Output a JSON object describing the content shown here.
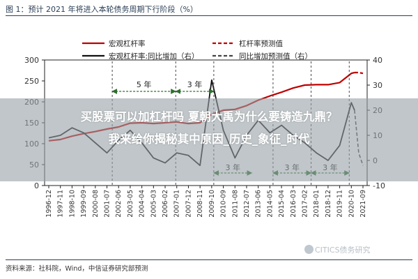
{
  "figure": {
    "title": "图 1：预计 2021 年将进入本轮债务周期下行阶段（%）",
    "source": "资料来源：社科院，Wind，中信证券研究部预测",
    "watermark": "CITICS债务研究"
  },
  "overlay": {
    "line1": "买股票可以加杠杆吗 夏朝大禹为什么要铸造九鼎？",
    "line2": "我来给你揭秘其中原因_历史_象征_时代"
  },
  "colors": {
    "leverage": "#c00000",
    "yoy": "#111111",
    "forecast_dash": "#c00000",
    "yoy_forecast_dash": "#444444",
    "cycle_arrow": "#2f6f2f",
    "title_text": "#2a3f56",
    "overlay_bg": "#98a2a6"
  },
  "chart_data": {
    "type": "line",
    "title": "",
    "xlabel": "",
    "ylabel": "",
    "x_ticks": [
      "1996-12",
      "1997-11",
      "1998-10",
      "1999-09",
      "2000-08",
      "2001-07",
      "2002-06",
      "2003-05",
      "2004-04",
      "2005-03",
      "2006-02",
      "2007-01",
      "2007-12",
      "2008-11",
      "2009-10",
      "2010-09",
      "2011-08",
      "2012-07",
      "2013-06",
      "2014-05",
      "2015-04",
      "2016-03",
      "2017-02",
      "2018-01",
      "2018-12",
      "2019-11",
      "2020-10",
      "2021-09"
    ],
    "left_axis": {
      "ticks": [
        0,
        50,
        100,
        150,
        200,
        250,
        300
      ],
      "ylim": [
        0,
        300
      ]
    },
    "right_axis": {
      "ticks": [
        -10,
        0,
        10,
        20,
        30,
        40
      ],
      "ylim": [
        -10,
        40
      ]
    },
    "legend": [
      {
        "label": "宏观杠杆率",
        "style": "solid",
        "color": "#c00000"
      },
      {
        "label": "杠杆率预测值",
        "style": "dashed",
        "color": "#c00000"
      },
      {
        "label": "宏观杠杆率:同比增加（右）",
        "style": "solid",
        "color": "#111111"
      },
      {
        "label": "同比增加预测值（右）",
        "style": "dashed",
        "color": "#444444"
      }
    ],
    "legend_position": "top",
    "series": [
      {
        "name": "宏观杠杆率",
        "axis": "left",
        "style": "solid",
        "points": [
          [
            "1996-12",
            107
          ],
          [
            "1997-11",
            110
          ],
          [
            "1998-10",
            118
          ],
          [
            "1999-09",
            124
          ],
          [
            "2000-08",
            129
          ],
          [
            "2001-07",
            135
          ],
          [
            "2002-06",
            140
          ],
          [
            "2003-05",
            149
          ],
          [
            "2004-04",
            150
          ],
          [
            "2005-03",
            148
          ],
          [
            "2006-02",
            150
          ],
          [
            "2007-01",
            152
          ],
          [
            "2007-12",
            148
          ],
          [
            "2008-11",
            150
          ],
          [
            "2009-10",
            170
          ],
          [
            "2010-09",
            180
          ],
          [
            "2011-08",
            182
          ],
          [
            "2012-07",
            191
          ],
          [
            "2013-06",
            204
          ],
          [
            "2014-05",
            214
          ],
          [
            "2015-04",
            223
          ],
          [
            "2016-03",
            233
          ],
          [
            "2017-02",
            240
          ],
          [
            "2018-01",
            241
          ],
          [
            "2018-12",
            241
          ],
          [
            "2019-11",
            246
          ],
          [
            "2020-10",
            268
          ],
          [
            "2021-01",
            270
          ]
        ]
      },
      {
        "name": "杠杆率预测值",
        "axis": "left",
        "style": "dashed",
        "points": [
          [
            "2021-01",
            270
          ],
          [
            "2021-05",
            270
          ],
          [
            "2021-09",
            268
          ]
        ]
      },
      {
        "name": "宏观杠杆率:同比增加（右）",
        "axis": "right",
        "style": "solid",
        "points": [
          [
            "1996-12",
            9
          ],
          [
            "1997-11",
            10
          ],
          [
            "1998-10",
            13
          ],
          [
            "1999-09",
            11
          ],
          [
            "2000-08",
            7
          ],
          [
            "2001-07",
            3
          ],
          [
            "2002-06",
            8
          ],
          [
            "2003-05",
            12
          ],
          [
            "2004-04",
            7
          ],
          [
            "2005-03",
            1
          ],
          [
            "2006-02",
            -1
          ],
          [
            "2007-01",
            3
          ],
          [
            "2007-12",
            2
          ],
          [
            "2008-11",
            -2
          ],
          [
            "2009-10",
            32
          ],
          [
            "2010-09",
            12
          ],
          [
            "2011-08",
            1
          ],
          [
            "2012-07",
            10
          ],
          [
            "2013-06",
            16
          ],
          [
            "2014-05",
            11
          ],
          [
            "2015-04",
            14
          ],
          [
            "2016-03",
            10
          ],
          [
            "2017-02",
            7
          ],
          [
            "2018-01",
            3
          ],
          [
            "2018-12",
            0
          ],
          [
            "2019-11",
            6
          ],
          [
            "2020-10",
            23
          ],
          [
            "2021-01",
            20
          ]
        ]
      },
      {
        "name": "同比增加预测值（右）",
        "axis": "right",
        "style": "dashed",
        "points": [
          [
            "2021-01",
            20
          ],
          [
            "2021-05",
            3
          ],
          [
            "2021-09",
            -2
          ]
        ]
      }
    ],
    "cycle_annotations": [
      {
        "label": "5 年",
        "from": "2001-12",
        "to": "2006-12"
      },
      {
        "label": "3 年",
        "from": "2006-12",
        "to": "2009-12"
      },
      {
        "label": "3 年",
        "from": "2009-12",
        "to": "2012-12"
      },
      {
        "label": "3 年",
        "from": "2014-08",
        "to": "2017-08"
      },
      {
        "label": "3 年",
        "from": "2017-08",
        "to": "2020-08"
      }
    ],
    "grid": false
  }
}
